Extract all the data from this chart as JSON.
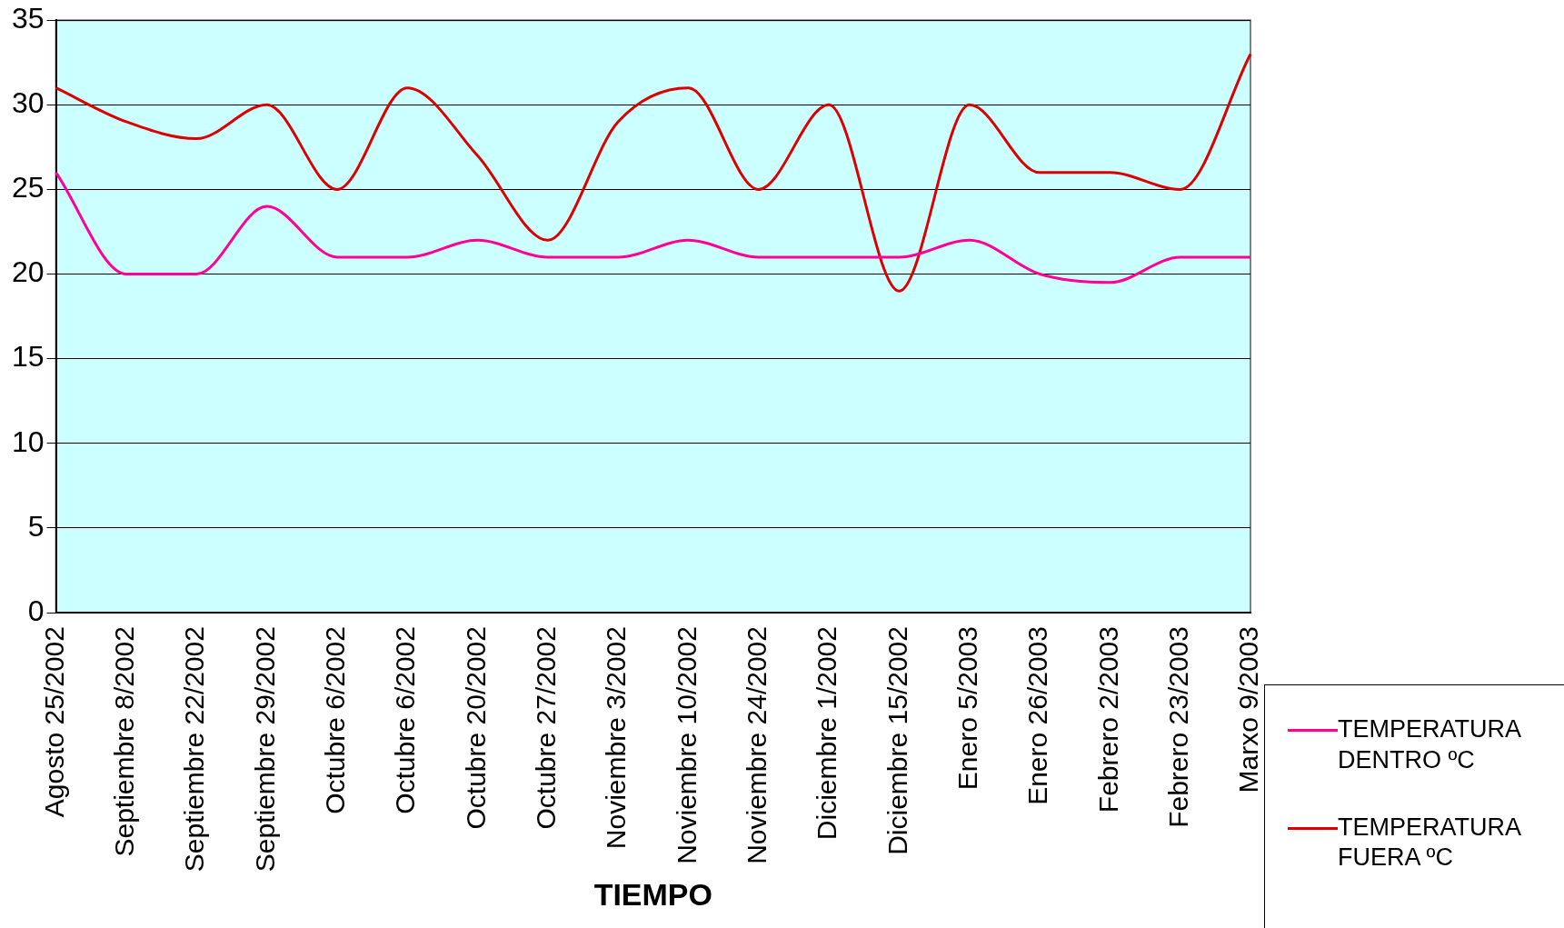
{
  "chart_data": {
    "type": "line",
    "xlabel": "TIEMPO",
    "categories": [
      "Agosto 25/2002",
      "Septiembre 8/2002",
      "Septiembre 22/2002",
      "Septiembre 29/2002",
      "Octubre 6/2002",
      "Octubre 6/2002",
      "Octubre 20/2002",
      "Octubre 27/2002",
      "Noviembre 3/2002",
      "Noviembre 10/2002",
      "Noviembre 24/2002",
      "Diciembre 1/2002",
      "Diciembre 15/2002",
      "Enero 5/2003",
      "Enero 26/2003",
      "Febrero 2/2003",
      "Febrero 23/2003",
      "Marxo 9/2003"
    ],
    "series": [
      {
        "name": "TEMPERATURA DENTRO ºC",
        "color": "#ff0099",
        "values": [
          26,
          20,
          20,
          24,
          21,
          21,
          22,
          21,
          21,
          22,
          21,
          21,
          21,
          22,
          20,
          19.5,
          21,
          21
        ]
      },
      {
        "name": "TEMPERATURA FUERA ºC",
        "color": "#dd0000",
        "values": [
          31,
          29,
          28,
          30,
          25,
          31,
          27,
          22,
          29,
          31,
          25,
          30,
          19,
          30,
          26,
          26,
          25,
          33
        ]
      }
    ],
    "ylim": [
      0,
      35
    ],
    "yticks": [
      0,
      5,
      10,
      15,
      20,
      25,
      30,
      35
    ],
    "grid": "y",
    "legend": "right",
    "marker": "none",
    "line_style": "solid"
  }
}
